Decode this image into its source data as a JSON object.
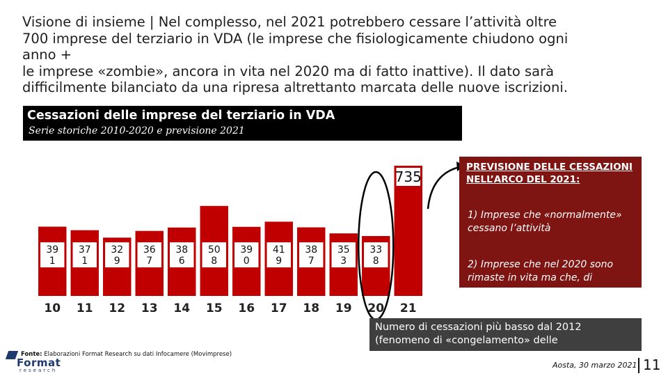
{
  "slide": {
    "title_lines": [
      "Visione di insieme | Nel complesso, nel 2021 potrebbero cessare l’attività oltre",
      "700 imprese del terziario in VDA (le imprese che fisiologicamente chiudono ogni",
      "anno +",
      "le imprese «zombie», ancora in vita nel 2020 ma di fatto inattive). Il dato sarà",
      "difficilmente bilanciato da una ripresa altrettanto marcata delle nuove iscrizioni."
    ],
    "chart_header": {
      "title": "Cessazioni delle imprese del terziario in VDA",
      "subtitle": "Serie storiche 2010-2020 e previsione 2021"
    },
    "right_panel": {
      "title": "PREVISIONE DELLE CESSAZIONI NELL’ARCO DEL 2021:",
      "item1": "1) Imprese che «normalmente» cessano l’attività",
      "item2": "2) Imprese che nel 2020 sono rimaste in vita ma che, di"
    },
    "callout": "Numero di cessazioni più basso dal 2012 (fenomeno di «congelamento» delle",
    "source": {
      "label": "Fonte:",
      "text": " Elaborazioni Format Research su dati Infocamere (Movimprese)"
    },
    "logo": {
      "word": "Format",
      "sub": "research"
    },
    "footer": {
      "date": "Aosta, 30 marzo 2021",
      "page": "11"
    },
    "colors": {
      "bar": "#c00000",
      "panel": "#7f1512",
      "callout": "#3f3f3f",
      "header": "#000000"
    }
  },
  "chart_data": {
    "type": "bar",
    "title": "Cessazioni delle imprese del terziario in VDA",
    "subtitle": "Serie storiche 2010-2020 e previsione 2021",
    "categories": [
      "10",
      "11",
      "12",
      "13",
      "14",
      "15",
      "16",
      "17",
      "18",
      "19",
      "20",
      "21"
    ],
    "values": [
      391,
      371,
      329,
      367,
      386,
      508,
      390,
      419,
      387,
      353,
      338,
      735
    ],
    "data_labels": [
      "39 1",
      "37 1",
      "32 9",
      "36 7",
      "38 6",
      "50 8",
      "39 0",
      "41 9",
      "38 7",
      "35 3",
      "33 8",
      "735"
    ],
    "xlabel": "",
    "ylabel": "",
    "ylim": [
      0,
      900
    ],
    "highlight": {
      "category": "20",
      "shape": "ellipse"
    },
    "forecast_category": "21"
  }
}
